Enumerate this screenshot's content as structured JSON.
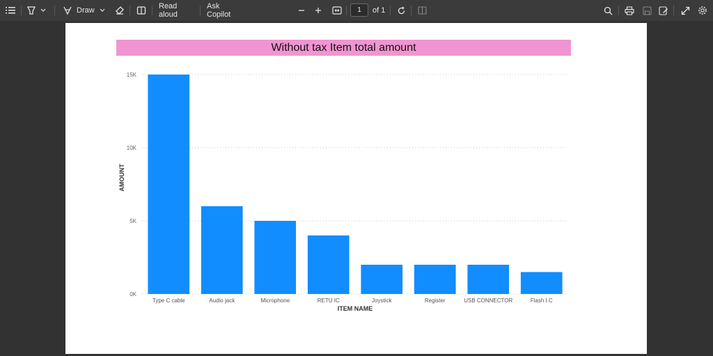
{
  "toolbar": {
    "draw_label": "Draw",
    "read_aloud_label": "Read aloud",
    "ask_copilot_label": "Ask Copilot",
    "page_number": "1",
    "page_of": "of 1"
  },
  "chart_data": {
    "type": "bar",
    "title": "Without tax Item total amount",
    "xlabel": "ITEM NAME",
    "ylabel": "AMOUNT",
    "categories": [
      "Type C cable",
      "Audio jack",
      "Microphone",
      "RETU IC",
      "Joystick",
      "Register",
      "USB CONNECTOR",
      "Flash I.C"
    ],
    "values": [
      15000,
      6000,
      5000,
      4000,
      2000,
      2000,
      2000,
      1500
    ],
    "ylim": [
      0,
      15000
    ],
    "yticks": [
      0,
      5000,
      10000,
      15000
    ],
    "ytick_labels": [
      "0K",
      "5K",
      "10K",
      "15K"
    ],
    "bar_color": "#118dff",
    "title_bg": "#f194d2",
    "grid": true
  }
}
